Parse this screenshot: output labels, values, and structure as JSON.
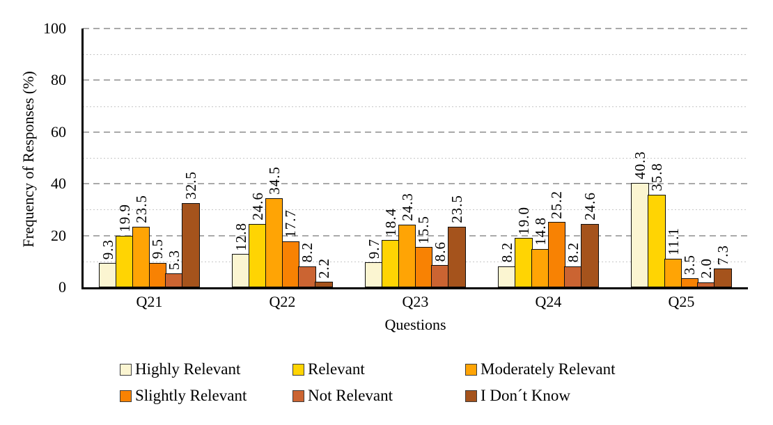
{
  "chart_data": {
    "type": "bar",
    "title": "",
    "xlabel": "Questions",
    "ylabel": "Frequency of Responses (%)",
    "categories": [
      "Q21",
      "Q22",
      "Q23",
      "Q24",
      "Q25"
    ],
    "series": [
      {
        "name": "Highly Relevant",
        "color": "#FBF5D1",
        "values": [
          9.3,
          12.8,
          9.7,
          8.2,
          40.3
        ],
        "labels": [
          "9.3",
          "12.8",
          "9.7",
          "8.2",
          "40.3"
        ]
      },
      {
        "name": "Relevant",
        "color": "#FFD403",
        "values": [
          19.9,
          24.6,
          18.4,
          19.0,
          35.8
        ],
        "labels": [
          "19.9",
          "24.6",
          "18.4",
          "19.0",
          "35.8"
        ]
      },
      {
        "name": "Moderately Relevant",
        "color": "#FFA405",
        "values": [
          23.5,
          34.5,
          24.3,
          14.8,
          11.1
        ],
        "labels": [
          "23.5",
          "34.5",
          "24.3",
          "14.8",
          "11.1"
        ]
      },
      {
        "name": "Slightly Relevant",
        "color": "#F88203",
        "values": [
          9.5,
          17.7,
          15.5,
          25.2,
          3.5
        ],
        "labels": [
          "9.5",
          "17.7",
          "15.5",
          "25.2",
          "3.5"
        ]
      },
      {
        "name": "Not Relevant",
        "color": "#CB6432",
        "values": [
          5.3,
          8.2,
          8.6,
          8.2,
          2.0
        ],
        "labels": [
          "5.3",
          "8.2",
          "8.6",
          "8.2",
          "2.0"
        ]
      },
      {
        "name": "I Don´t Know",
        "color": "#A5531C",
        "values": [
          32.5,
          2.2,
          23.5,
          24.6,
          7.3
        ],
        "labels": [
          "32.5",
          "2.2",
          "23.5",
          "24.6",
          "7.3"
        ]
      }
    ],
    "ylim": [
      0,
      100
    ],
    "yticks": [
      0,
      20,
      40,
      60,
      80,
      100
    ],
    "grid": "horizontal; major dashed lines every 20, minor dotted lines every 10",
    "legend_position": "bottom, 2 rows x 3 columns",
    "data_label_rotation": "90deg reading bottom-to-top",
    "axis_color": "#000000",
    "grid_major_color": "#a9a9a9",
    "grid_minor_color": "#c6c6c6"
  }
}
